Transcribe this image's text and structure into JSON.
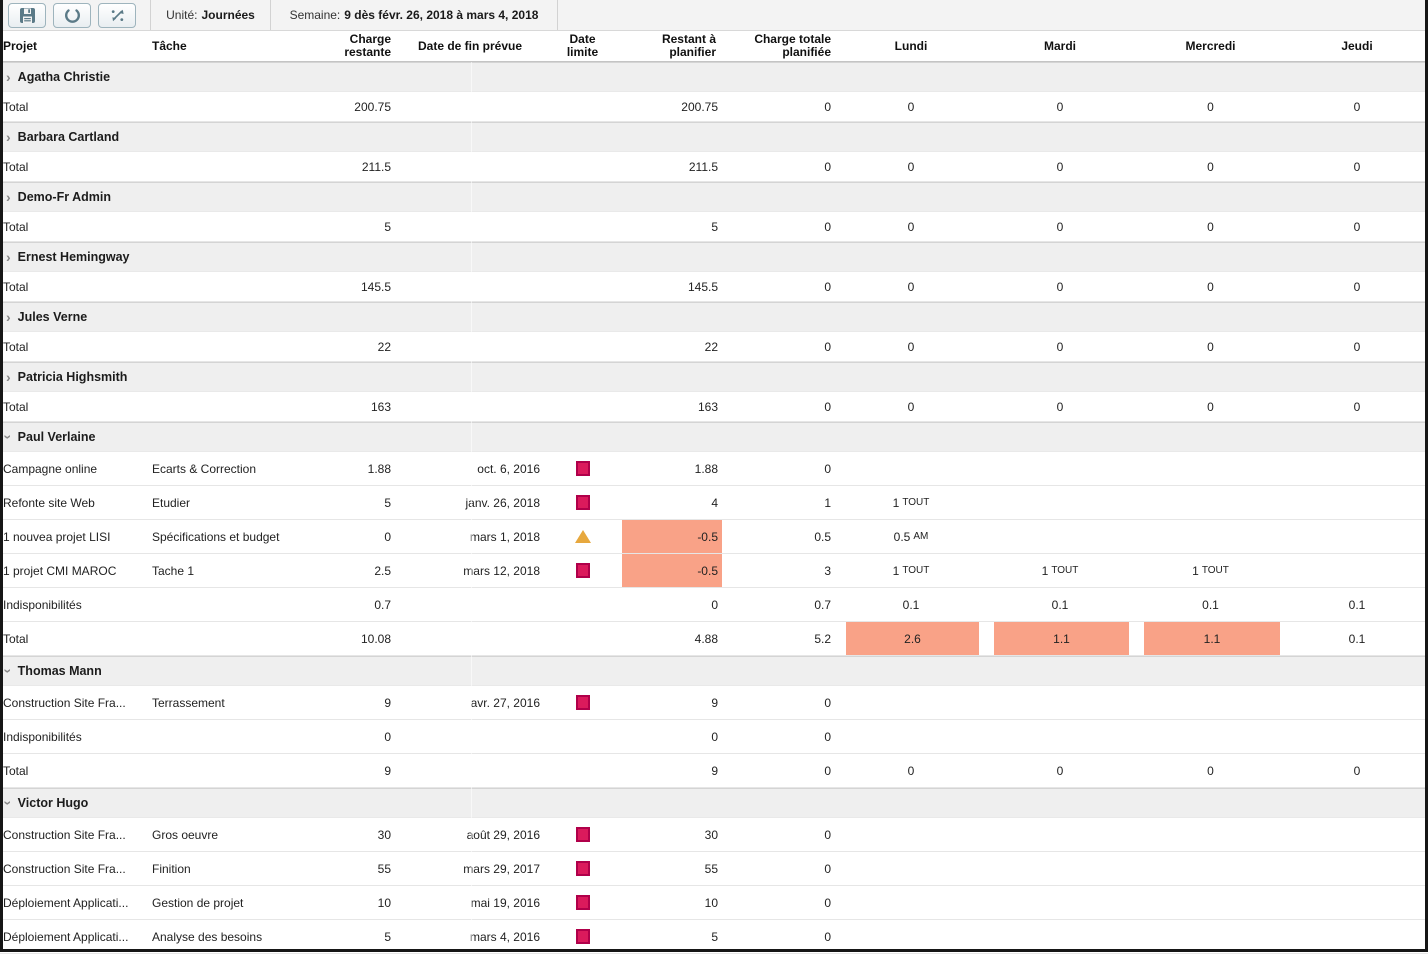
{
  "toolbar": {
    "buttons": [
      {
        "icon": "save-icon"
      },
      {
        "icon": "refresh-icon"
      },
      {
        "icon": "swap-arrows-icon"
      }
    ],
    "unit_label": "Unité:",
    "unit_value": "Journées",
    "week_label": "Semaine:",
    "week_value": "9 dès févr. 26, 2018 à mars 4, 2018"
  },
  "colors": {
    "overload_bg": "#F9A287",
    "deadline_square": "#DB1A5C",
    "deadline_square_border": "#B0004A",
    "warning_triangle": "#E7A83E",
    "group_row_bg": "#EFEFEF"
  },
  "table": {
    "total_label": "Total",
    "columns": [
      {
        "key": "projet",
        "label": "Projet"
      },
      {
        "key": "tache",
        "label": "Tâche"
      },
      {
        "key": "charge_restante",
        "label": "Charge\nrestante"
      },
      {
        "key": "date_fin",
        "label": "Date de fin prévue"
      },
      {
        "key": "date_limite",
        "label": "Date\nlimite"
      },
      {
        "key": "restant",
        "label": "Restant à\nplanifier"
      },
      {
        "key": "charge_totale",
        "label": "Charge totale\nplanifiée"
      },
      {
        "key": "lundi",
        "label": "Lundi"
      },
      {
        "key": "mardi",
        "label": "Mardi"
      },
      {
        "key": "mercredi",
        "label": "Mercredi"
      },
      {
        "key": "jeudi",
        "label": "Jeudi"
      }
    ],
    "day_keys": [
      "lundi",
      "mardi",
      "mercredi",
      "jeudi"
    ],
    "groups": [
      {
        "name": "Agatha Christie",
        "expanded": false,
        "rows": [],
        "total": {
          "charge": "200.75",
          "restant": "200.75",
          "charge_totale": "0",
          "days": [
            {
              "v": "0"
            },
            {
              "v": "0"
            },
            {
              "v": "0"
            },
            {
              "v": "0"
            }
          ]
        }
      },
      {
        "name": "Barbara Cartland",
        "expanded": false,
        "rows": [],
        "total": {
          "charge": "211.5",
          "restant": "211.5",
          "charge_totale": "0",
          "days": [
            {
              "v": "0"
            },
            {
              "v": "0"
            },
            {
              "v": "0"
            },
            {
              "v": "0"
            }
          ]
        }
      },
      {
        "name": "Demo-Fr Admin",
        "expanded": false,
        "rows": [],
        "total": {
          "charge": "5",
          "restant": "5",
          "charge_totale": "0",
          "days": [
            {
              "v": "0"
            },
            {
              "v": "0"
            },
            {
              "v": "0"
            },
            {
              "v": "0"
            }
          ]
        }
      },
      {
        "name": "Ernest Hemingway",
        "expanded": false,
        "rows": [],
        "total": {
          "charge": "145.5",
          "restant": "145.5",
          "charge_totale": "0",
          "days": [
            {
              "v": "0"
            },
            {
              "v": "0"
            },
            {
              "v": "0"
            },
            {
              "v": "0"
            }
          ]
        }
      },
      {
        "name": "Jules Verne",
        "expanded": false,
        "rows": [],
        "total": {
          "charge": "22",
          "restant": "22",
          "charge_totale": "0",
          "days": [
            {
              "v": "0"
            },
            {
              "v": "0"
            },
            {
              "v": "0"
            },
            {
              "v": "0"
            }
          ]
        }
      },
      {
        "name": "Patricia Highsmith",
        "expanded": false,
        "rows": [],
        "total": {
          "charge": "163",
          "restant": "163",
          "charge_totale": "0",
          "days": [
            {
              "v": "0"
            },
            {
              "v": "0"
            },
            {
              "v": "0"
            },
            {
              "v": "0"
            }
          ]
        }
      },
      {
        "name": "Paul Verlaine",
        "expanded": true,
        "rows": [
          {
            "projet": "Campagne online",
            "tache": "Ecarts & Correction",
            "charge": "1.88",
            "date_fin": "oct. 6, 2016",
            "limite": "square",
            "restant": "1.88",
            "restant_hl": false,
            "charge_totale": "0",
            "days": [
              null,
              null,
              null,
              null
            ]
          },
          {
            "projet": "Refonte site Web",
            "tache": "Etudier",
            "charge": "5",
            "date_fin": "janv. 26, 2018",
            "limite": "square",
            "restant": "4",
            "restant_hl": false,
            "charge_totale": "1",
            "days": [
              {
                "v": "1",
                "sfx": "TOUT"
              },
              null,
              null,
              null
            ]
          },
          {
            "projet": "1 nouvea projet LISI",
            "tache": "Spécifications et budget",
            "charge": "0",
            "date_fin": "mars 1, 2018",
            "limite": "triangle",
            "restant": "-0.5",
            "restant_hl": true,
            "charge_totale": "0.5",
            "days": [
              {
                "v": "0.5",
                "sfx": "AM"
              },
              null,
              null,
              null
            ]
          },
          {
            "projet": "1 projet CMI MAROC",
            "tache": "Tache 1",
            "charge": "2.5",
            "date_fin": "mars 12, 2018",
            "limite": "square",
            "restant": "-0.5",
            "restant_hl": true,
            "charge_totale": "3",
            "days": [
              {
                "v": "1",
                "sfx": "TOUT"
              },
              {
                "v": "1",
                "sfx": "TOUT"
              },
              {
                "v": "1",
                "sfx": "TOUT"
              },
              null
            ]
          },
          {
            "projet": "Indisponibilités",
            "tache": "",
            "readonly": true,
            "charge": "0.7",
            "date_fin": "",
            "limite": "",
            "restant": "0",
            "restant_hl": false,
            "charge_totale": "0.7",
            "days": [
              {
                "v": "0.1"
              },
              {
                "v": "0.1"
              },
              {
                "v": "0.1"
              },
              {
                "v": "0.1"
              }
            ]
          }
        ],
        "total": {
          "charge": "10.08",
          "restant": "4.88",
          "charge_totale": "5.2",
          "days": [
            {
              "v": "2.6",
              "hl": true
            },
            {
              "v": "1.1",
              "hl": true
            },
            {
              "v": "1.1",
              "hl": true
            },
            {
              "v": "0.1"
            }
          ]
        }
      },
      {
        "name": "Thomas Mann",
        "expanded": true,
        "rows": [
          {
            "projet": "Construction Site Fra...",
            "tache": "Terrassement",
            "charge": "9",
            "date_fin": "avr. 27, 2016",
            "limite": "square",
            "restant": "9",
            "restant_hl": false,
            "charge_totale": "0",
            "days": [
              null,
              null,
              null,
              null
            ]
          },
          {
            "projet": "Indisponibilités",
            "tache": "",
            "readonly": true,
            "charge": "0",
            "date_fin": "",
            "limite": "",
            "restant": "0",
            "restant_hl": false,
            "charge_totale": "0",
            "days": [
              null,
              null,
              null,
              null
            ]
          }
        ],
        "total": {
          "charge": "9",
          "restant": "9",
          "charge_totale": "0",
          "days": [
            {
              "v": "0"
            },
            {
              "v": "0"
            },
            {
              "v": "0"
            },
            {
              "v": "0"
            }
          ]
        }
      },
      {
        "name": "Victor Hugo",
        "expanded": true,
        "rows": [
          {
            "projet": "Construction Site Fra...",
            "tache": "Gros oeuvre",
            "charge": "30",
            "date_fin": "août 29, 2016",
            "limite": "square",
            "restant": "30",
            "restant_hl": false,
            "charge_totale": "0",
            "days": [
              null,
              null,
              null,
              null
            ]
          },
          {
            "projet": "Construction Site Fra...",
            "tache": "Finition",
            "charge": "55",
            "date_fin": "mars 29, 2017",
            "limite": "square",
            "restant": "55",
            "restant_hl": false,
            "charge_totale": "0",
            "days": [
              null,
              null,
              null,
              null
            ]
          },
          {
            "projet": "Déploiement Applicati...",
            "tache": "Gestion de projet",
            "charge": "10",
            "date_fin": "mai 19, 2016",
            "limite": "square",
            "restant": "10",
            "restant_hl": false,
            "charge_totale": "0",
            "days": [
              null,
              null,
              null,
              null
            ]
          },
          {
            "projet": "Déploiement Applicati...",
            "tache": "Analyse des besoins",
            "charge": "5",
            "date_fin": "mars 4, 2016",
            "limite": "square",
            "restant": "5",
            "restant_hl": false,
            "charge_totale": "0",
            "days": [
              null,
              null,
              null,
              null
            ]
          }
        ],
        "total": null
      }
    ]
  }
}
